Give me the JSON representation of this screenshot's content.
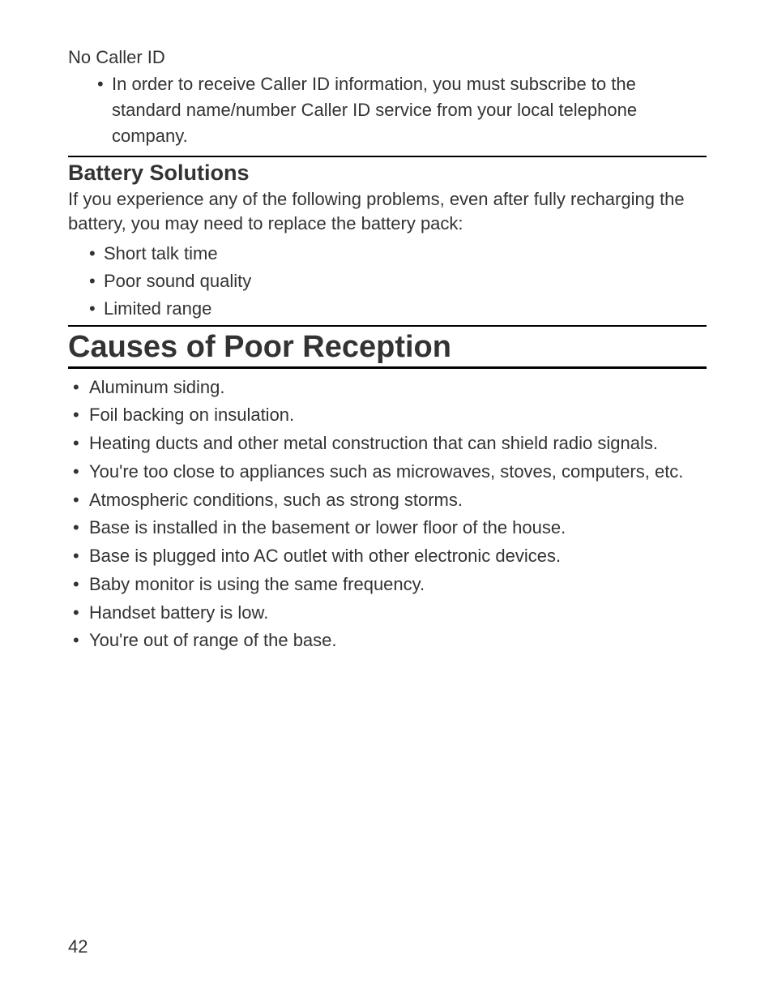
{
  "colors": {
    "text": "#333333",
    "background": "#ffffff",
    "rule": "#000000"
  },
  "typography": {
    "body_fontsize_pt": 16,
    "h2_fontsize_pt": 20,
    "h1_fontsize_pt": 28,
    "font_family": "sans-serif"
  },
  "section1": {
    "title": "No Caller ID",
    "bullets": [
      "In order to receive Caller ID information, you must subscribe to the standard name/number Caller ID service from your local telephone company."
    ]
  },
  "section2": {
    "heading": "Battery Solutions",
    "intro": "If you experience any of the following problems, even after fully recharging the battery, you may need to replace the battery pack:",
    "bullets": [
      "Short talk time",
      "Poor sound quality",
      "Limited range"
    ]
  },
  "section3": {
    "heading": "Causes of Poor Reception",
    "bullets": [
      "Aluminum siding.",
      "Foil backing on insulation.",
      "Heating ducts and other metal construction that can shield radio signals.",
      "You're too close to appliances such as microwaves, stoves, computers, etc.",
      "Atmospheric conditions, such as strong storms.",
      "Base is installed in the basement or lower floor of the house.",
      "Base is plugged into AC outlet with other electronic devices.",
      "Baby monitor is using the same frequency.",
      "Handset battery is low.",
      "You're out of range of the base."
    ]
  },
  "page_number": "42"
}
